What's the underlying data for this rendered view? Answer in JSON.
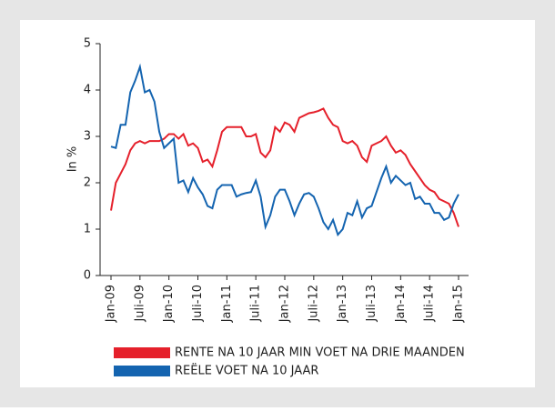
{
  "chart_data": {
    "type": "line",
    "ylabel": "In %",
    "categories": [
      "Jan-09",
      null,
      null,
      null,
      null,
      null,
      "Juli-09",
      null,
      null,
      null,
      null,
      null,
      "Jan-10",
      null,
      null,
      null,
      null,
      null,
      "Juli-10",
      null,
      null,
      null,
      null,
      null,
      "Jan-11",
      null,
      null,
      null,
      null,
      null,
      "Juli-11",
      null,
      null,
      null,
      null,
      null,
      "Jan-12",
      null,
      null,
      null,
      null,
      null,
      "Juli-12",
      null,
      null,
      null,
      null,
      null,
      "Jan-13",
      null,
      null,
      null,
      null,
      null,
      "Juli-13",
      null,
      null,
      null,
      null,
      null,
      "Jan-14",
      null,
      null,
      null,
      null,
      null,
      "Juli-14",
      null,
      null,
      null,
      null,
      null,
      "Jan-15"
    ],
    "series": [
      {
        "name": "RENTE NA 10 JAAR MIN VOET NA DRIE MAANDEN",
        "color": "#e5202b",
        "values": [
          1.4,
          2.0,
          2.2,
          2.4,
          2.7,
          2.85,
          2.9,
          2.85,
          2.9,
          2.9,
          2.9,
          2.95,
          3.05,
          3.05,
          2.95,
          3.05,
          2.8,
          2.85,
          2.75,
          2.45,
          2.5,
          2.35,
          2.7,
          3.1,
          3.2,
          3.2,
          3.2,
          3.2,
          3.0,
          3.0,
          3.05,
          2.65,
          2.55,
          2.7,
          3.2,
          3.1,
          3.3,
          3.25,
          3.1,
          3.4,
          3.45,
          3.5,
          3.52,
          3.55,
          3.6,
          3.4,
          3.25,
          3.2,
          2.9,
          2.85,
          2.9,
          2.8,
          2.55,
          2.45,
          2.8,
          2.85,
          2.9,
          3.0,
          2.8,
          2.65,
          2.7,
          2.6,
          2.4,
          2.25,
          2.1,
          1.95,
          1.85,
          1.8,
          1.65,
          1.6,
          1.55,
          1.35,
          1.05
        ]
      },
      {
        "name": "REËLE VOET NA 10 JAAR",
        "color": "#1464b0",
        "values": [
          2.78,
          2.75,
          3.25,
          3.25,
          3.95,
          4.2,
          4.5,
          3.95,
          4.0,
          3.75,
          3.1,
          2.75,
          2.85,
          2.95,
          2.0,
          2.05,
          1.8,
          2.1,
          1.9,
          1.75,
          1.5,
          1.45,
          1.85,
          1.95,
          1.95,
          1.95,
          1.7,
          1.75,
          1.78,
          1.8,
          2.05,
          1.7,
          1.05,
          1.3,
          1.7,
          1.85,
          1.85,
          1.6,
          1.3,
          1.55,
          1.75,
          1.78,
          1.7,
          1.45,
          1.15,
          1.0,
          1.2,
          0.88,
          1.0,
          1.35,
          1.3,
          1.6,
          1.25,
          1.45,
          1.5,
          1.8,
          2.1,
          2.35,
          2.0,
          2.15,
          2.05,
          1.95,
          2.0,
          1.65,
          1.7,
          1.55,
          1.55,
          1.35,
          1.35,
          1.2,
          1.25,
          1.55,
          1.75
        ]
      }
    ],
    "ylim": [
      0,
      5
    ],
    "yticks": [
      0,
      1,
      2,
      3,
      4,
      5
    ]
  }
}
